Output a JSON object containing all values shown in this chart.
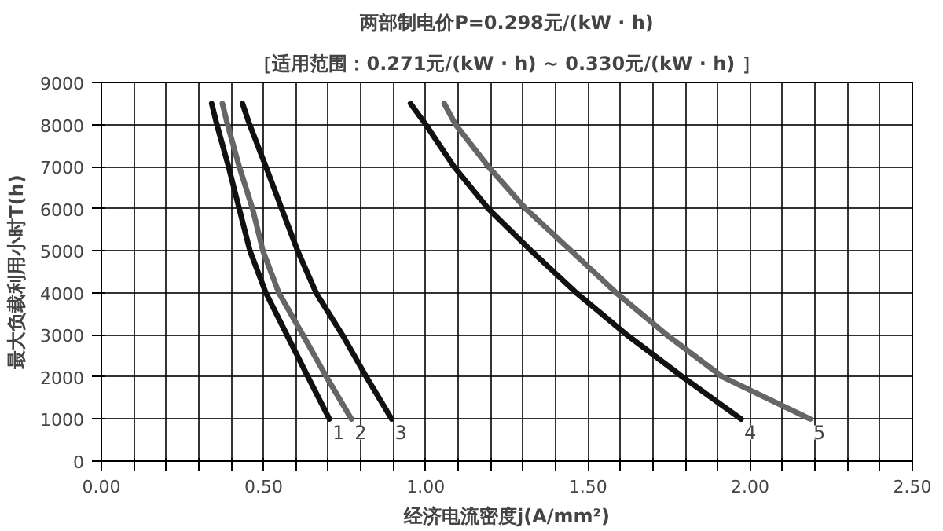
{
  "chart_data": {
    "type": "line",
    "title": "两部制电价P=0.298元/(kW · h)",
    "subtitle": "［适用范围：0.271元/(kW · h) ~ 0.330元/(kW · h) ］",
    "xlabel": "经济电流密度j(A/mm²)",
    "ylabel": "最大负载利用小时T(h)",
    "xlim": [
      0,
      2.5
    ],
    "ylim": [
      0,
      9000
    ],
    "xticks": [
      {
        "value": 0,
        "label": "0.00"
      },
      {
        "value": 0.1,
        "label": null
      },
      {
        "value": 0.2,
        "label": null
      },
      {
        "value": 0.3,
        "label": null
      },
      {
        "value": 0.4,
        "label": null
      },
      {
        "value": 0.5,
        "label": "0.50"
      },
      {
        "value": 0.6,
        "label": null
      },
      {
        "value": 0.7,
        "label": null
      },
      {
        "value": 0.8,
        "label": null
      },
      {
        "value": 0.9,
        "label": null
      },
      {
        "value": 1.0,
        "label": "1.00"
      },
      {
        "value": 1.1,
        "label": null
      },
      {
        "value": 1.2,
        "label": null
      },
      {
        "value": 1.3,
        "label": null
      },
      {
        "value": 1.4,
        "label": null
      },
      {
        "value": 1.5,
        "label": "1.50"
      },
      {
        "value": 1.6,
        "label": null
      },
      {
        "value": 1.7,
        "label": null
      },
      {
        "value": 1.8,
        "label": null
      },
      {
        "value": 1.9,
        "label": null
      },
      {
        "value": 2.0,
        "label": "2.00"
      },
      {
        "value": 2.1,
        "label": null
      },
      {
        "value": 2.2,
        "label": null
      },
      {
        "value": 2.3,
        "label": null
      },
      {
        "value": 2.4,
        "label": null
      },
      {
        "value": 2.5,
        "label": "2.50"
      }
    ],
    "yticks": [
      0,
      1000,
      2000,
      3000,
      4000,
      5000,
      6000,
      7000,
      8000,
      9000
    ],
    "grid": true,
    "line_style": "solid",
    "marker": "none",
    "series": [
      {
        "name": "1",
        "color": "#111111",
        "x": [
          0.34,
          0.356,
          0.392,
          0.425,
          0.458,
          0.507,
          0.572,
          0.637,
          0.703
        ],
        "values": [
          8500,
          8000,
          7000,
          6000,
          5000,
          4000,
          3000,
          2000,
          1000
        ]
      },
      {
        "name": "2",
        "color": "#666666",
        "x": [
          0.373,
          0.389,
          0.425,
          0.466,
          0.498,
          0.547,
          0.621,
          0.694,
          0.771
        ],
        "values": [
          8500,
          8000,
          7000,
          6000,
          5000,
          4000,
          3000,
          2000,
          1000
        ]
      },
      {
        "name": "3",
        "color": "#111111",
        "x": [
          0.435,
          0.457,
          0.507,
          0.556,
          0.605,
          0.662,
          0.743,
          0.817,
          0.895
        ],
        "values": [
          8500,
          8000,
          7000,
          6000,
          5000,
          4000,
          3000,
          2000,
          1000
        ]
      },
      {
        "name": "4",
        "color": "#111111",
        "x": [
          0.953,
          1.0,
          1.087,
          1.193,
          1.325,
          1.464,
          1.62,
          1.792,
          1.972
        ],
        "values": [
          8500,
          8000,
          7000,
          6000,
          5000,
          4000,
          3000,
          2000,
          1000
        ]
      },
      {
        "name": "5",
        "color": "#666666",
        "x": [
          1.057,
          1.092,
          1.193,
          1.308,
          1.448,
          1.587,
          1.743,
          1.915,
          2.185
        ],
        "values": [
          8500,
          8000,
          7000,
          6000,
          5000,
          4000,
          3000,
          2000,
          1000
        ]
      }
    ]
  }
}
